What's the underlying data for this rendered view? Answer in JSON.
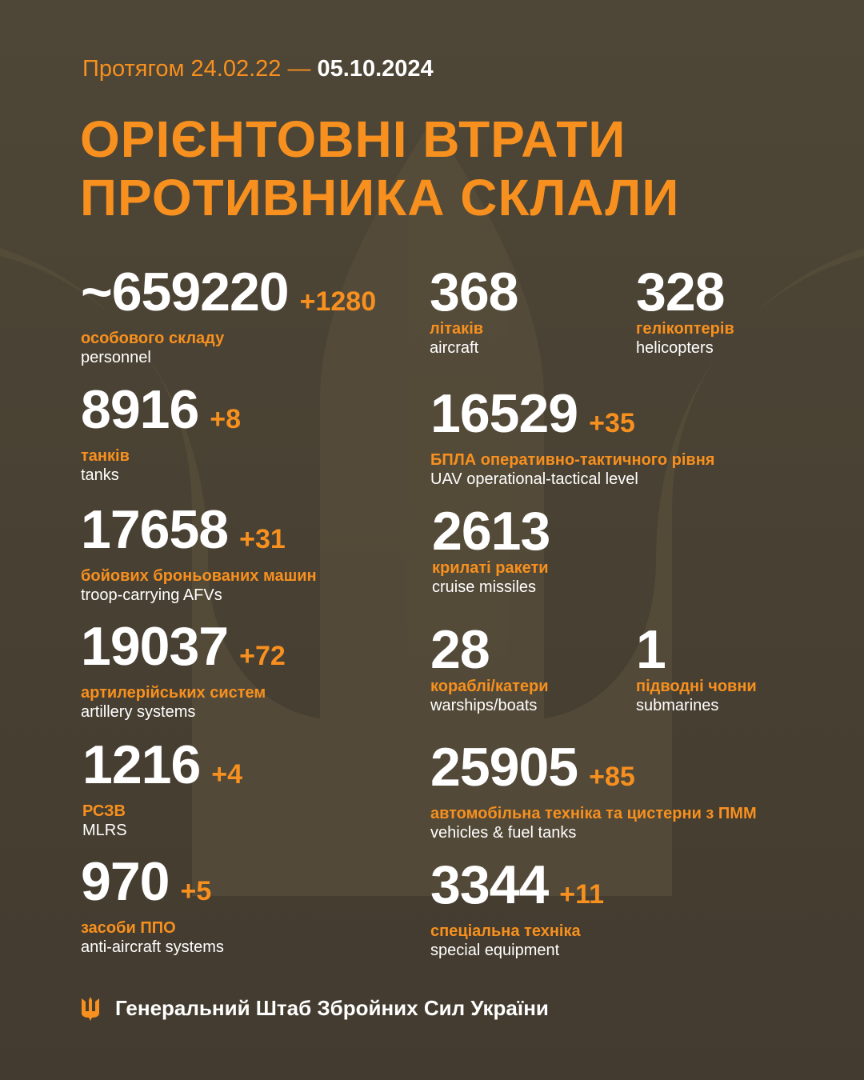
{
  "header": {
    "prefix": "Протягом 24.02.22 —",
    "date": "05.10.2024",
    "title_line1": "ОРІЄНТОВНІ ВТРАТИ",
    "title_line2": "ПРОТИВНИКА СКЛАЛИ"
  },
  "colors": {
    "accent": "#f7901e",
    "background": "#4a4234",
    "text": "#ffffff"
  },
  "stats": [
    {
      "value": "~659220",
      "delta": "+1280",
      "ua": "особового складу",
      "en": "personnel"
    },
    {
      "value": "368",
      "delta": "",
      "ua": "літаків",
      "en": "aircraft"
    },
    {
      "value": "328",
      "delta": "",
      "ua": "гелікоптерів",
      "en": "helicopters"
    },
    {
      "value": "8916",
      "delta": "+8",
      "ua": "танків",
      "en": "tanks"
    },
    {
      "value": "16529",
      "delta": "+35",
      "ua": "БПЛА оперативно-тактичного рівня",
      "en": "UAV operational-tactical level"
    },
    {
      "value": "17658",
      "delta": "+31",
      "ua": "бойових броньованих машин",
      "en": "troop-carrying AFVs"
    },
    {
      "value": "2613",
      "delta": "",
      "ua": "крилаті ракети",
      "en": "cruise missiles"
    },
    {
      "value": "19037",
      "delta": "+72",
      "ua": "артилерійських систем",
      "en": "artillery systems"
    },
    {
      "value": "28",
      "delta": "",
      "ua": "кораблі/катери",
      "en": "warships/boats"
    },
    {
      "value": "1",
      "delta": "",
      "ua": "підводні човни",
      "en": "submarines"
    },
    {
      "value": "1216",
      "delta": "+4",
      "ua": "РСЗВ",
      "en": "MLRS"
    },
    {
      "value": "25905",
      "delta": "+85",
      "ua": "автомобільна техніка та цистерни з ПММ",
      "en": "vehicles & fuel tanks"
    },
    {
      "value": "970",
      "delta": "+5",
      "ua": "засоби ППО",
      "en": "anti-aircraft systems"
    },
    {
      "value": "3344",
      "delta": "+11",
      "ua": "спеціальна техніка",
      "en": "special equipment"
    }
  ],
  "footer": {
    "icon": "trident-icon",
    "label": "Генеральний Штаб Збройних Сил України"
  }
}
